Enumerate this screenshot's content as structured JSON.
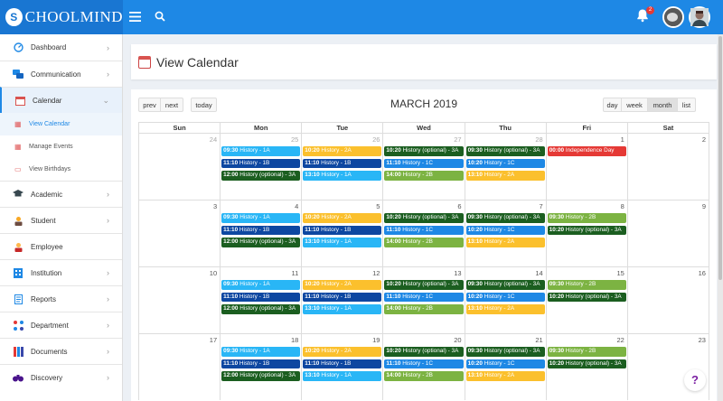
{
  "app": {
    "brand_letter": "S",
    "brand_rest": "CHOOLMIND",
    "notification_count": "2"
  },
  "colors": {
    "topbar": "#1e88e5",
    "light_blue": "#29b6f6",
    "yellow": "#fbc02d",
    "dark_green": "#1b5e20",
    "blue": "#1e88e5",
    "navy": "#0d47a1",
    "green": "#7cb342",
    "red": "#e53935"
  },
  "sidebar": {
    "items": [
      {
        "label": "Dashboard",
        "icon": "dashboard-icon"
      },
      {
        "label": "Communication",
        "icon": "chat-icon"
      },
      {
        "label": "Calendar",
        "icon": "calendar-icon"
      },
      {
        "label": "View Calendar",
        "icon": "calendar-view-icon"
      },
      {
        "label": "Manage Events",
        "icon": "calendar-manage-icon"
      },
      {
        "label": "View Birthdays",
        "icon": "birthday-icon"
      },
      {
        "label": "Academic",
        "icon": "graduation-cap-icon"
      },
      {
        "label": "Student",
        "icon": "student-icon"
      },
      {
        "label": "Employee",
        "icon": "employee-icon"
      },
      {
        "label": "Institution",
        "icon": "building-icon"
      },
      {
        "label": "Reports",
        "icon": "reports-icon"
      },
      {
        "label": "Department",
        "icon": "department-icon"
      },
      {
        "label": "Documents",
        "icon": "documents-icon"
      },
      {
        "label": "Discovery",
        "icon": "binoculars-icon"
      }
    ]
  },
  "page": {
    "title": "View Calendar"
  },
  "calendar": {
    "prev": "prev",
    "next": "next",
    "today": "today",
    "month_title": "MARCH 2019",
    "views": {
      "day": "day",
      "week": "week",
      "month": "month",
      "list": "list"
    },
    "weekdays": [
      "Sun",
      "Mon",
      "Tue",
      "Wed",
      "Thu",
      "Fri",
      "Sat"
    ],
    "weeks": [
      {
        "days": [
          {
            "num": "24",
            "other": true,
            "events": []
          },
          {
            "num": "25",
            "other": true,
            "events": [
              {
                "time": "09:30",
                "title": "History - 1A",
                "color": "#29b6f6"
              },
              {
                "time": "11:10",
                "title": "History - 1B",
                "color": "#0d47a1"
              },
              {
                "time": "12:00",
                "title": "History (optional) - 3A",
                "color": "#1b5e20"
              }
            ]
          },
          {
            "num": "26",
            "other": true,
            "events": [
              {
                "time": "10:20",
                "title": "History - 2A",
                "color": "#fbc02d"
              },
              {
                "time": "11:10",
                "title": "History - 1B",
                "color": "#0d47a1"
              },
              {
                "time": "13:10",
                "title": "History - 1A",
                "color": "#29b6f6"
              }
            ]
          },
          {
            "num": "27",
            "other": true,
            "events": [
              {
                "time": "10:20",
                "title": "History (optional) - 3A",
                "color": "#1b5e20"
              },
              {
                "time": "11:10",
                "title": "History - 1C",
                "color": "#1e88e5"
              },
              {
                "time": "14:00",
                "title": "History - 2B",
                "color": "#7cb342"
              }
            ]
          },
          {
            "num": "28",
            "other": true,
            "events": [
              {
                "time": "09:30",
                "title": "History (optional) - 3A",
                "color": "#1b5e20"
              },
              {
                "time": "10:20",
                "title": "History - 1C",
                "color": "#1e88e5"
              },
              {
                "time": "13:10",
                "title": "History - 2A",
                "color": "#fbc02d"
              }
            ]
          },
          {
            "num": "1",
            "other": false,
            "events": [
              {
                "time": "00:00",
                "title": "Independence Day",
                "color": "#e53935"
              }
            ]
          },
          {
            "num": "2",
            "other": false,
            "events": []
          }
        ]
      },
      {
        "days": [
          {
            "num": "3",
            "other": false,
            "events": []
          },
          {
            "num": "4",
            "other": false,
            "events": [
              {
                "time": "09:30",
                "title": "History - 1A",
                "color": "#29b6f6"
              },
              {
                "time": "11:10",
                "title": "History - 1B",
                "color": "#0d47a1"
              },
              {
                "time": "12:00",
                "title": "History (optional) - 3A",
                "color": "#1b5e20"
              }
            ]
          },
          {
            "num": "5",
            "other": false,
            "events": [
              {
                "time": "10:20",
                "title": "History - 2A",
                "color": "#fbc02d"
              },
              {
                "time": "11:10",
                "title": "History - 1B",
                "color": "#0d47a1"
              },
              {
                "time": "13:10",
                "title": "History - 1A",
                "color": "#29b6f6"
              }
            ]
          },
          {
            "num": "6",
            "other": false,
            "events": [
              {
                "time": "10:20",
                "title": "History (optional) - 3A",
                "color": "#1b5e20"
              },
              {
                "time": "11:10",
                "title": "History - 1C",
                "color": "#1e88e5"
              },
              {
                "time": "14:00",
                "title": "History - 2B",
                "color": "#7cb342"
              }
            ]
          },
          {
            "num": "7",
            "other": false,
            "events": [
              {
                "time": "09:30",
                "title": "History (optional) - 3A",
                "color": "#1b5e20"
              },
              {
                "time": "10:20",
                "title": "History - 1C",
                "color": "#1e88e5"
              },
              {
                "time": "13:10",
                "title": "History - 2A",
                "color": "#fbc02d"
              }
            ]
          },
          {
            "num": "8",
            "other": false,
            "events": [
              {
                "time": "09:30",
                "title": "History - 2B",
                "color": "#7cb342"
              },
              {
                "time": "10:20",
                "title": "History (optional) - 3A",
                "color": "#1b5e20"
              }
            ]
          },
          {
            "num": "9",
            "other": false,
            "events": []
          }
        ]
      },
      {
        "days": [
          {
            "num": "10",
            "other": false,
            "events": []
          },
          {
            "num": "11",
            "other": false,
            "events": [
              {
                "time": "09:30",
                "title": "History - 1A",
                "color": "#29b6f6"
              },
              {
                "time": "11:10",
                "title": "History - 1B",
                "color": "#0d47a1"
              },
              {
                "time": "12:00",
                "title": "History (optional) - 3A",
                "color": "#1b5e20"
              }
            ]
          },
          {
            "num": "12",
            "other": false,
            "events": [
              {
                "time": "10:20",
                "title": "History - 2A",
                "color": "#fbc02d"
              },
              {
                "time": "11:10",
                "title": "History - 1B",
                "color": "#0d47a1"
              },
              {
                "time": "13:10",
                "title": "History - 1A",
                "color": "#29b6f6"
              }
            ]
          },
          {
            "num": "13",
            "other": false,
            "events": [
              {
                "time": "10:20",
                "title": "History (optional) - 3A",
                "color": "#1b5e20"
              },
              {
                "time": "11:10",
                "title": "History - 1C",
                "color": "#1e88e5"
              },
              {
                "time": "14:00",
                "title": "History - 2B",
                "color": "#7cb342"
              }
            ]
          },
          {
            "num": "14",
            "other": false,
            "events": [
              {
                "time": "09:30",
                "title": "History (optional) - 3A",
                "color": "#1b5e20"
              },
              {
                "time": "10:20",
                "title": "History - 1C",
                "color": "#1e88e5"
              },
              {
                "time": "13:10",
                "title": "History - 2A",
                "color": "#fbc02d"
              }
            ]
          },
          {
            "num": "15",
            "other": false,
            "events": [
              {
                "time": "09:30",
                "title": "History - 2B",
                "color": "#7cb342"
              },
              {
                "time": "10:20",
                "title": "History (optional) - 3A",
                "color": "#1b5e20"
              }
            ]
          },
          {
            "num": "16",
            "other": false,
            "events": []
          }
        ]
      },
      {
        "days": [
          {
            "num": "17",
            "other": false,
            "events": []
          },
          {
            "num": "18",
            "other": false,
            "events": [
              {
                "time": "09:30",
                "title": "History - 1A",
                "color": "#29b6f6"
              },
              {
                "time": "11:10",
                "title": "History - 1B",
                "color": "#0d47a1"
              },
              {
                "time": "12:00",
                "title": "History (optional) - 3A",
                "color": "#1b5e20"
              }
            ]
          },
          {
            "num": "19",
            "other": false,
            "events": [
              {
                "time": "10:20",
                "title": "History - 2A",
                "color": "#fbc02d"
              },
              {
                "time": "11:10",
                "title": "History - 1B",
                "color": "#0d47a1"
              },
              {
                "time": "13:10",
                "title": "History - 1A",
                "color": "#29b6f6"
              }
            ]
          },
          {
            "num": "20",
            "other": false,
            "events": [
              {
                "time": "10:20",
                "title": "History (optional) - 3A",
                "color": "#1b5e20"
              },
              {
                "time": "11:10",
                "title": "History - 1C",
                "color": "#1e88e5"
              },
              {
                "time": "14:00",
                "title": "History - 2B",
                "color": "#7cb342"
              }
            ]
          },
          {
            "num": "21",
            "other": false,
            "events": [
              {
                "time": "09:30",
                "title": "History (optional) - 3A",
                "color": "#1b5e20"
              },
              {
                "time": "10:20",
                "title": "History - 1C",
                "color": "#1e88e5"
              },
              {
                "time": "13:10",
                "title": "History - 2A",
                "color": "#fbc02d"
              }
            ]
          },
          {
            "num": "22",
            "other": false,
            "events": [
              {
                "time": "09:30",
                "title": "History - 2B",
                "color": "#7cb342"
              },
              {
                "time": "10:20",
                "title": "History (optional) - 3A",
                "color": "#1b5e20"
              }
            ]
          },
          {
            "num": "23",
            "other": false,
            "events": []
          }
        ]
      }
    ]
  },
  "help": {
    "label": "?"
  }
}
